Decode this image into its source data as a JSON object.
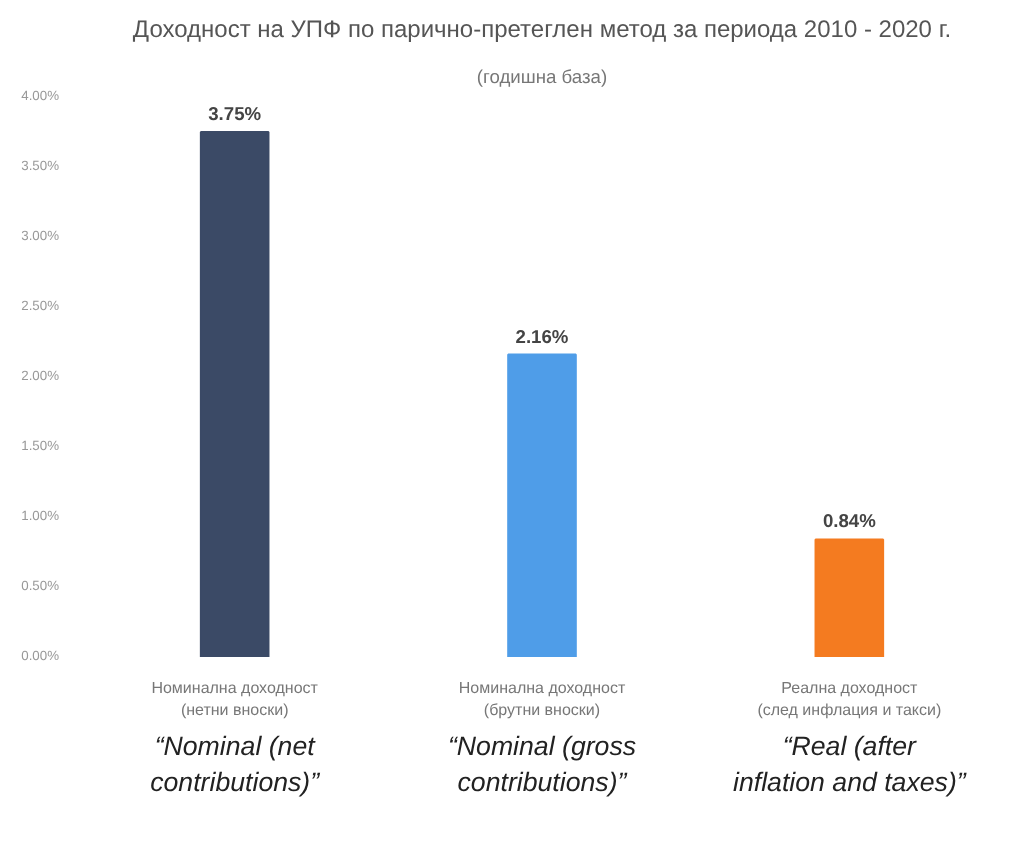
{
  "chart_data": {
    "type": "bar",
    "title": "Доходност на УПФ по парично-претеглен метод за периода 2010 - 2020 г.",
    "subtitle": "(годишна база)",
    "categories": [
      "Номинална доходност\n(нетни вноски)",
      "Номинална доходност\n(брутни вноски)",
      "Реална доходност\n(след инфлация и такси)"
    ],
    "values": [
      3.75,
      2.16,
      0.84
    ],
    "colors": [
      "#3b4a66",
      "#4f9de8",
      "#f47b20"
    ],
    "value_labels": [
      "3.75%",
      "2.16%",
      "0.84%"
    ],
    "ylim": [
      0,
      4
    ],
    "yticks": [
      {
        "value": 0,
        "label": "0.00%"
      },
      {
        "value": 0.5,
        "label": "0.50%"
      },
      {
        "value": 1,
        "label": "1.00%"
      },
      {
        "value": 1.5,
        "label": "1.50%"
      },
      {
        "value": 2,
        "label": "2.00%"
      },
      {
        "value": 2.5,
        "label": "2.50%"
      },
      {
        "value": 3,
        "label": "3.00%"
      },
      {
        "value": 3.5,
        "label": "3.50%"
      },
      {
        "value": 4,
        "label": "4.00%"
      }
    ],
    "grid": false,
    "annotations": [
      "“Nominal (net\ncontributions)”",
      "“Nominal (gross\ncontributions)”",
      "“Real (after\ninflation and taxes)”"
    ]
  }
}
